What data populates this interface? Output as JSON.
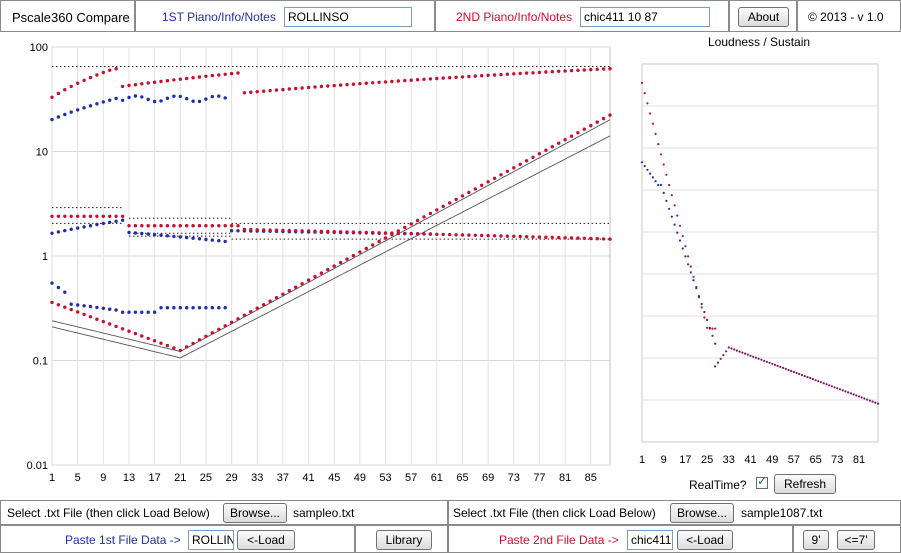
{
  "header": {
    "app_title": "Pscale360 Compare",
    "piano1_label": "1ST Piano/Info/Notes",
    "piano1_value": "ROLLINSO",
    "piano2_label": "2ND Piano/Info/Notes",
    "piano2_value": "chic411 10 87",
    "about_label": "About",
    "copyright": "© 2013 - v 1.0"
  },
  "colors": {
    "piano1": "#1f2fa8",
    "piano2": "#c8102e"
  },
  "main_chart": {
    "type": "scatter",
    "yscale": "log",
    "ylim": [
      0.01,
      100
    ],
    "xlim": [
      1,
      88
    ],
    "y_ticks": [
      "100",
      "10",
      "1",
      "0.1",
      "0.01"
    ],
    "x_ticks": [
      "1",
      "5",
      "9",
      "13",
      "17",
      "21",
      "25",
      "29",
      "33",
      "37",
      "41",
      "45",
      "49",
      "53",
      "57",
      "61",
      "65",
      "69",
      "73",
      "77",
      "81",
      "85"
    ],
    "grid": true
  },
  "side_chart": {
    "title": "Loudness / Sustain",
    "type": "scatter",
    "x_ticks": [
      "1",
      "9",
      "17",
      "25",
      "33",
      "41",
      "49",
      "57",
      "65",
      "73",
      "81"
    ]
  },
  "controls": {
    "realtime_label": "RealTime?",
    "realtime_checked": true,
    "refresh_label": "Refresh"
  },
  "file1": {
    "select_label": "Select .txt File (then click Load Below)",
    "browse_label": "Browse...",
    "filename": "sampleo.txt",
    "paste_label": "Paste 1st File Data ->",
    "paste_value": "ROLLIN",
    "load_label": "<-Load",
    "library_label": "Library"
  },
  "file2": {
    "select_label": "Select .txt File (then click Load Below)",
    "browse_label": "Browse...",
    "filename": "sample1087.txt",
    "paste_label": "Paste 2nd File Data ->",
    "paste_value": "chic411",
    "load_label": "<-Load",
    "btn9_label": "9'",
    "btn7_label": "<=7'"
  }
}
